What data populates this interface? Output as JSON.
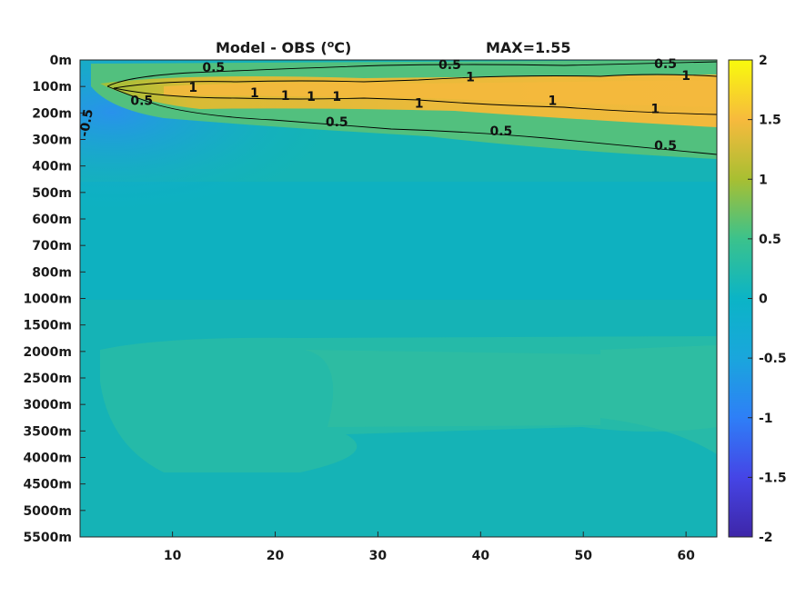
{
  "chart_data": {
    "type": "heatmap",
    "title_left": "Model - OBS (",
    "title_sup": "o",
    "title_unit": "C)",
    "title_right": "MAX=1.55",
    "xlim": [
      1,
      63
    ],
    "x_ticks": [
      10,
      20,
      30,
      40,
      50,
      60
    ],
    "y_ticks": [
      "0m",
      "100m",
      "200m",
      "300m",
      "400m",
      "500m",
      "600m",
      "700m",
      "800m",
      "1000m",
      "1500m",
      "2000m",
      "2500m",
      "3000m",
      "3500m",
      "4000m",
      "4500m",
      "5000m",
      "5500m"
    ],
    "colorbar": {
      "min": -2,
      "max": 2,
      "ticks": [
        "2",
        "1.5",
        "1",
        "0.5",
        "0",
        "-0.5",
        "-1",
        "-1.5",
        "-2"
      ]
    },
    "contour_levels": [
      0.5,
      1,
      -0.5
    ],
    "contour_labels": [
      {
        "text": "0.5",
        "x": 14,
        "y": 0.45
      },
      {
        "text": "0.5",
        "x": 37,
        "y": 0.35
      },
      {
        "text": "0.5",
        "x": 58,
        "y": 0.3
      },
      {
        "text": "1",
        "x": 39,
        "y": 0.8
      },
      {
        "text": "1",
        "x": 60,
        "y": 0.75
      },
      {
        "text": "1",
        "x": 12,
        "y": 1.2
      },
      {
        "text": "1",
        "x": 18,
        "y": 1.4
      },
      {
        "text": "1",
        "x": 21,
        "y": 1.5
      },
      {
        "text": "1",
        "x": 23.5,
        "y": 1.55
      },
      {
        "text": "1",
        "x": 26,
        "y": 1.55
      },
      {
        "text": "1",
        "x": 34,
        "y": 1.8
      },
      {
        "text": "1",
        "x": 47,
        "y": 1.7
      },
      {
        "text": "1",
        "x": 57,
        "y": 2.0
      },
      {
        "text": "0.5",
        "x": 7,
        "y": 1.7
      },
      {
        "text": "0.5",
        "x": 26,
        "y": 2.5
      },
      {
        "text": "0.5",
        "x": 42,
        "y": 2.85
      },
      {
        "text": "0.5",
        "x": 58,
        "y": 3.4
      },
      {
        "text": "-0.5",
        "x": 2,
        "y": 2.4
      }
    ]
  }
}
